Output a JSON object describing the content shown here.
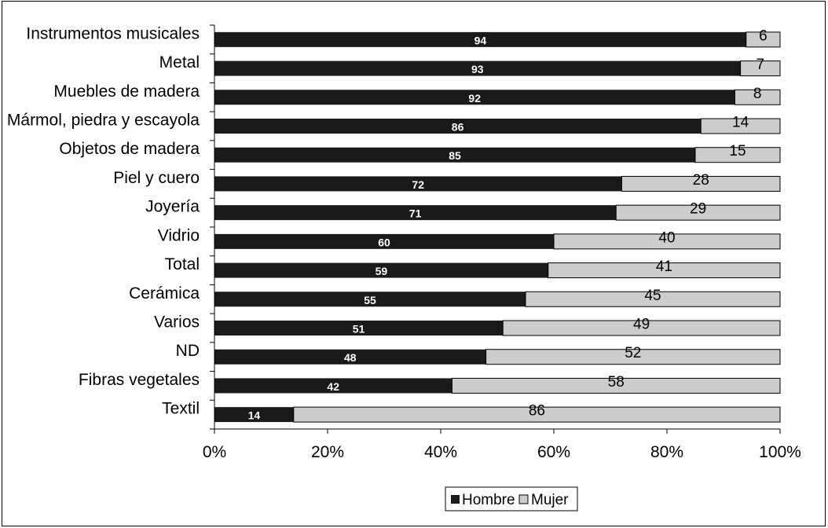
{
  "chart_data": {
    "type": "bar",
    "orientation": "horizontal",
    "stacked": "percent",
    "categories": [
      "Instrumentos musicales",
      "Metal",
      "Muebles de madera",
      "Mármol, piedra y escayola",
      "Objetos de madera",
      "Piel y cuero",
      "Joyería",
      "Vidrio",
      "Total",
      "Cerámica",
      "Varios",
      "ND",
      "Fibras vegetales",
      "Textil"
    ],
    "series": [
      {
        "name": "Hombre",
        "color": "#1a1a1a",
        "values": [
          94,
          93,
          92,
          86,
          85,
          72,
          71,
          60,
          59,
          55,
          51,
          48,
          42,
          14
        ]
      },
      {
        "name": "Mujer",
        "color": "#cccccc",
        "values": [
          6,
          7,
          8,
          14,
          15,
          28,
          29,
          40,
          41,
          45,
          49,
          52,
          58,
          86
        ]
      }
    ],
    "x_ticks": [
      "0%",
      "20%",
      "40%",
      "60%",
      "80%",
      "100%"
    ],
    "xlim": [
      0,
      100
    ],
    "legend": "bottom-center",
    "grid": false
  }
}
